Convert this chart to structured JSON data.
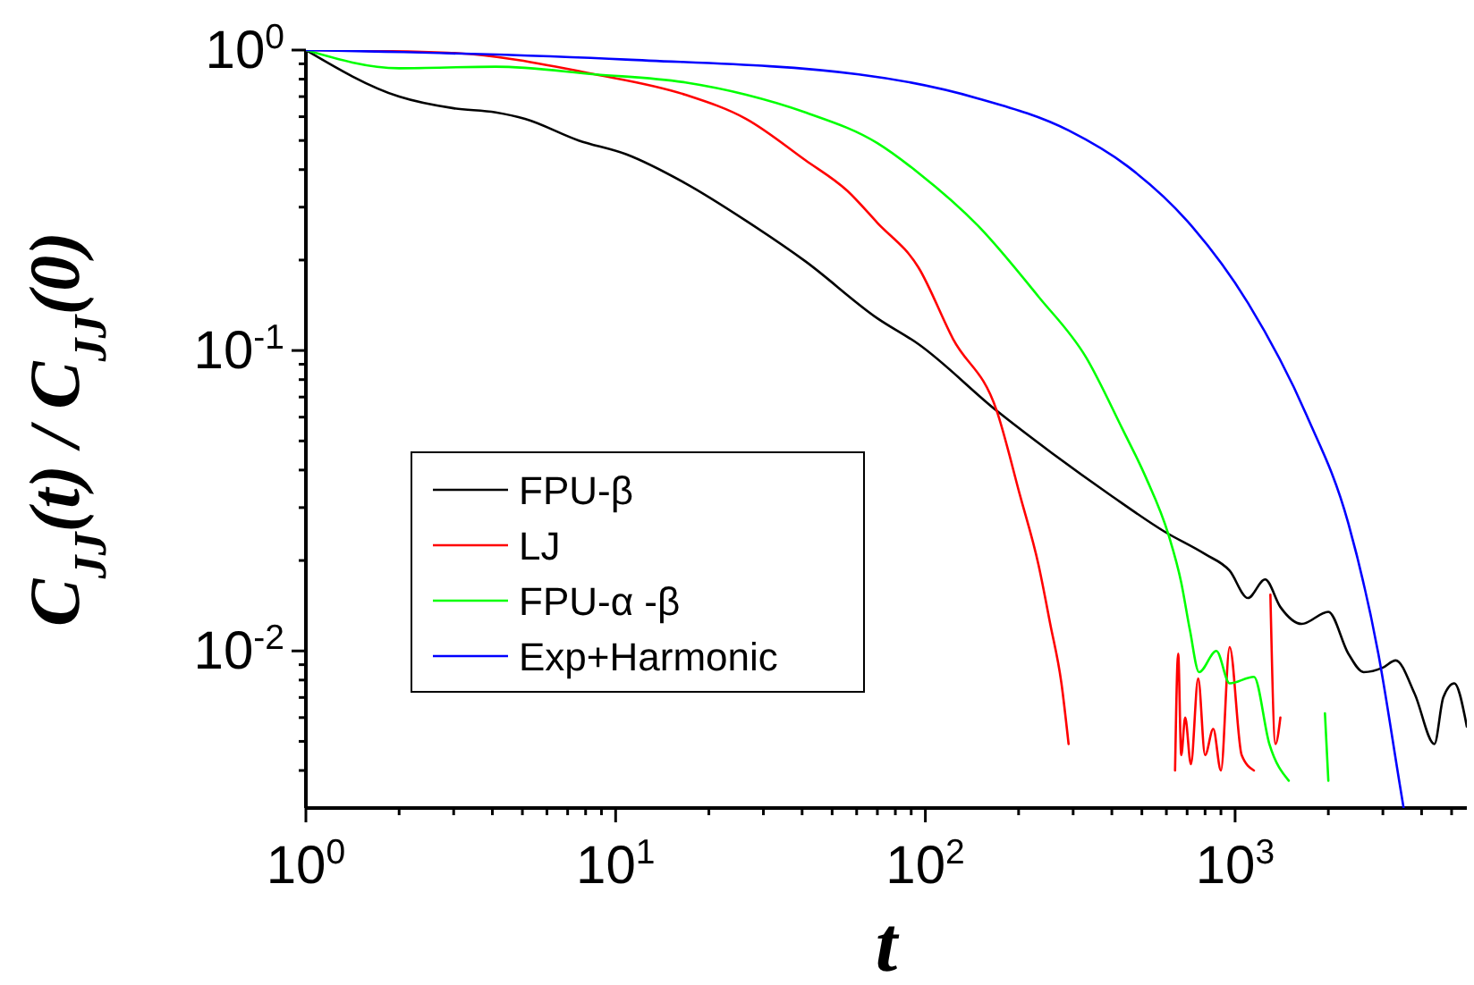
{
  "chart_data": {
    "type": "line",
    "xlabel": "t",
    "ylabel": "C$_{JJ}$(t) / C$_{JJ}$(0)",
    "log": "xy",
    "legend": "bottom left",
    "line_style": "solid",
    "marker": "none",
    "grid": false,
    "xlim": [
      1,
      5600
    ],
    "ylim": [
      0.003,
      1
    ],
    "xticks": [
      {
        "value": 1,
        "label": "10$^{0}$"
      },
      {
        "value": 2,
        "label": null
      },
      {
        "value": 3,
        "label": null
      },
      {
        "value": 4,
        "label": null
      },
      {
        "value": 5,
        "label": null
      },
      {
        "value": 6,
        "label": null
      },
      {
        "value": 7,
        "label": null
      },
      {
        "value": 8,
        "label": null
      },
      {
        "value": 9,
        "label": null
      },
      {
        "value": 10,
        "label": "10$^{1}$"
      },
      {
        "value": 20,
        "label": null
      },
      {
        "value": 30,
        "label": null
      },
      {
        "value": 40,
        "label": null
      },
      {
        "value": 50,
        "label": null
      },
      {
        "value": 60,
        "label": null
      },
      {
        "value": 70,
        "label": null
      },
      {
        "value": 80,
        "label": null
      },
      {
        "value": 90,
        "label": null
      },
      {
        "value": 100,
        "label": "10$^{2}$"
      },
      {
        "value": 200,
        "label": null
      },
      {
        "value": 300,
        "label": null
      },
      {
        "value": 400,
        "label": null
      },
      {
        "value": 500,
        "label": null
      },
      {
        "value": 600,
        "label": null
      },
      {
        "value": 700,
        "label": null
      },
      {
        "value": 800,
        "label": null
      },
      {
        "value": 900,
        "label": null
      },
      {
        "value": 1000,
        "label": "10$^{3}$"
      },
      {
        "value": 2000,
        "label": null
      },
      {
        "value": 3000,
        "label": null
      },
      {
        "value": 4000,
        "label": null
      },
      {
        "value": 5000,
        "label": null
      }
    ],
    "yticks": [
      {
        "value": 0.004,
        "label": null
      },
      {
        "value": 0.005,
        "label": null
      },
      {
        "value": 0.006,
        "label": null
      },
      {
        "value": 0.007,
        "label": null
      },
      {
        "value": 0.008,
        "label": null
      },
      {
        "value": 0.009,
        "label": null
      },
      {
        "value": 0.01,
        "label": "10$^{-2}$"
      },
      {
        "value": 0.02,
        "label": null
      },
      {
        "value": 0.03,
        "label": null
      },
      {
        "value": 0.04,
        "label": null
      },
      {
        "value": 0.05,
        "label": null
      },
      {
        "value": 0.06,
        "label": null
      },
      {
        "value": 0.07,
        "label": null
      },
      {
        "value": 0.08,
        "label": null
      },
      {
        "value": 0.09,
        "label": null
      },
      {
        "value": 0.1,
        "label": "10$^{-1}$"
      },
      {
        "value": 0.2,
        "label": null
      },
      {
        "value": 0.3,
        "label": null
      },
      {
        "value": 0.4,
        "label": null
      },
      {
        "value": 0.5,
        "label": null
      },
      {
        "value": 0.6,
        "label": null
      },
      {
        "value": 0.7,
        "label": null
      },
      {
        "value": 0.8,
        "label": null
      },
      {
        "value": 0.9,
        "label": null
      },
      {
        "value": 1,
        "label": "10$^{0}$"
      }
    ],
    "series": [
      {
        "name": "FPU-β",
        "color": "#000000",
        "x": [
          1,
          2,
          3,
          4.1,
          5.1,
          7.6,
          10.8,
          16.8,
          26.4,
          41,
          70,
          95,
          170,
          253,
          396,
          590,
          800,
          960,
          1100,
          1250,
          1400,
          1640,
          2000,
          2320,
          2600,
          3000,
          3300,
          3800,
          4400,
          4700,
          5100,
          5600
        ],
        "values": [
          1,
          0.7,
          0.64,
          0.62,
          0.59,
          0.5,
          0.45,
          0.36,
          0.27,
          0.198,
          0.128,
          0.105,
          0.063,
          0.046,
          0.033,
          0.025,
          0.021,
          0.0185,
          0.015,
          0.0173,
          0.014,
          0.0123,
          0.0135,
          0.0098,
          0.0085,
          0.0088,
          0.0093,
          0.0072,
          0.0049,
          0.007,
          0.0078,
          0.0056
        ]
      },
      {
        "name": "LJ",
        "color": "#ff0000",
        "x": [
          1,
          2.86,
          8.6,
          16.8,
          26.4,
          41,
          56,
          70,
          95,
          123,
          170,
          202,
          232,
          253,
          275,
          290,
          300,
          640,
          655,
          670,
          690,
          720,
          760,
          800,
          850,
          900,
          960,
          1050,
          1150,
          1250,
          1300,
          1350,
          1400
        ],
        "values": [
          1,
          0.98,
          0.83,
          0.71,
          0.59,
          0.43,
          0.34,
          0.266,
          0.189,
          0.109,
          0.063,
          0.033,
          0.0193,
          0.0123,
          0.0078,
          0.0049,
          null,
          0.004,
          0.0098,
          0.0045,
          0.006,
          0.0042,
          0.0081,
          0.0045,
          0.0055,
          0.004,
          0.0103,
          0.0045,
          0.004,
          null,
          0.0154,
          0.0049,
          0.006
        ]
      },
      {
        "name": "FPU-α -β",
        "color": "#00ff00",
        "x": [
          1,
          2,
          4.1,
          8.6,
          16.8,
          26.4,
          41,
          70,
          95,
          148,
          232,
          330,
          432,
          514,
          610,
          670,
          715,
          765,
          870,
          960,
          1150,
          1290,
          1490,
          1700,
          1950,
          2000
        ],
        "values": [
          1,
          0.87,
          0.88,
          0.83,
          0.78,
          0.71,
          0.62,
          0.49,
          0.39,
          0.26,
          0.151,
          0.095,
          0.055,
          0.038,
          0.0243,
          0.0169,
          0.0117,
          0.0085,
          0.01,
          0.0078,
          0.0082,
          0.0049,
          0.0037,
          null,
          0.0062,
          0.0037
        ]
      },
      {
        "name": "Exp+Harmonic",
        "color": "#0000ff",
        "x": [
          1,
          10.8,
          61,
          148,
          290,
          450,
          700,
          1100,
          1700,
          2320,
          2900,
          3400,
          3500
        ],
        "values": [
          1,
          0.93,
          0.83,
          0.69,
          0.54,
          0.41,
          0.27,
          0.144,
          0.061,
          0.0266,
          0.0098,
          0.0036,
          0.003
        ]
      }
    ]
  }
}
